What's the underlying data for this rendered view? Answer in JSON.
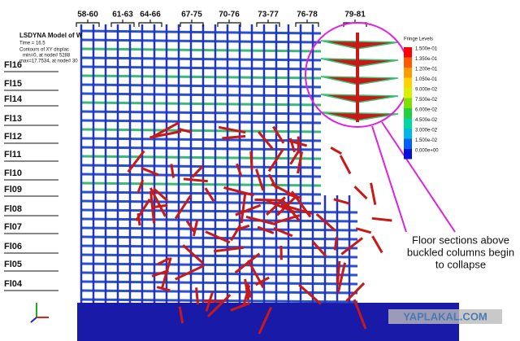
{
  "header": {
    "title": "LSDYNA Model of W",
    "time": "Time =  16.5",
    "contours": "Contours of XY displac",
    "min": "min=0, at node# 5288",
    "max": "max=17.7534, at node# 30"
  },
  "column_groups": [
    "58-60",
    "61-63",
    "64-66",
    "67-75",
    "70-76",
    "73-77",
    "76-78",
    "79-81"
  ],
  "floors": [
    "Fl16",
    "Fl15",
    "Fl14",
    "Fl13",
    "Fl12",
    "Fl11",
    "Fl10",
    "Fl09",
    "Fl08",
    "Fl07",
    "Fl06",
    "Fl05",
    "Fl04"
  ],
  "legend": {
    "title": "Fringe Levels",
    "levels": [
      "1.500e-01",
      "1.350e-01",
      "1.200e-01",
      "1.050e-01",
      "9.000e-02",
      "7.500e-02",
      "6.000e-02",
      "4.500e-02",
      "3.000e-02",
      "1.500e-02",
      "0.000e+00"
    ]
  },
  "annotation": [
    "Floor sections above",
    "buckled columns begin",
    "to collapse"
  ],
  "watermark": "YAPLAKAL.COM"
}
